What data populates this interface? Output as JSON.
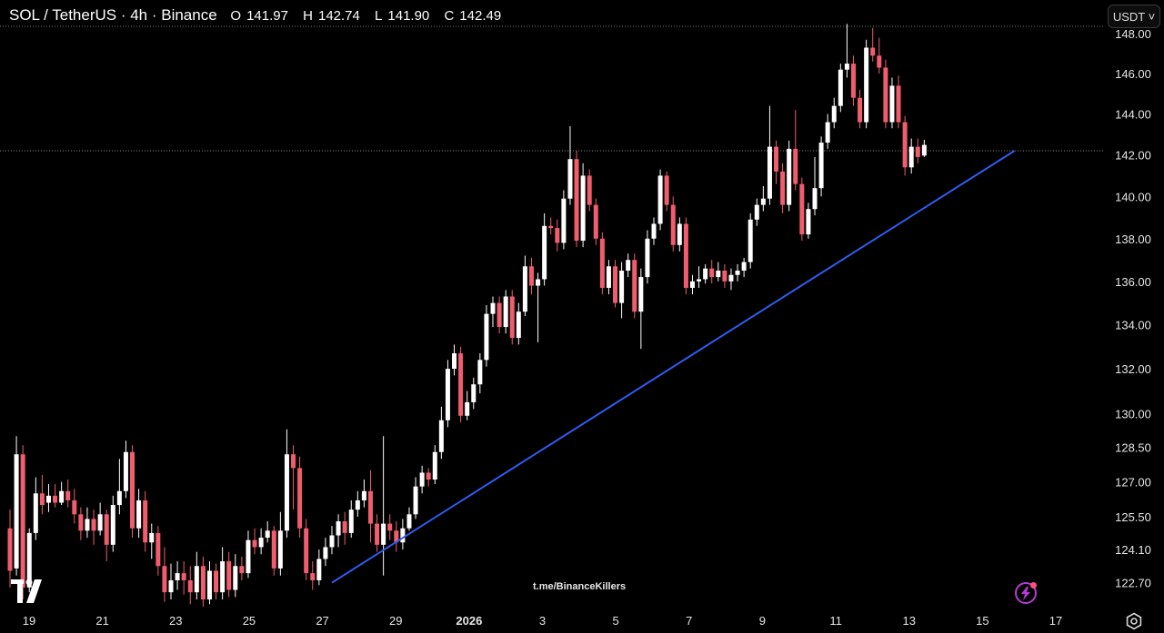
{
  "header": {
    "title": "SOL / TetherUS · 4h · Binance",
    "open_label": "O",
    "open": "141.97",
    "high_label": "H",
    "high": "142.74",
    "low_label": "L",
    "low": "141.90",
    "close_label": "C",
    "close": "142.49"
  },
  "currency_button": "USDT ˅",
  "watermark": "t.me/BinanceKillers",
  "icons": {
    "logo": "tradingview-logo-icon",
    "bolt": "lightning-bolt-icon",
    "settings": "settings-gear-icon"
  },
  "colors": {
    "up": "#ffffff",
    "down": "#f05d6d",
    "trendline": "#2f5cf0",
    "bolt_ring": "#b43cd6"
  },
  "chart_data": {
    "type": "candlestick",
    "title": "SOL / TetherUS · 4h · Binance",
    "y_axis": {
      "ticks": [
        "148.00",
        "146.00",
        "144.00",
        "142.00",
        "140.00",
        "138.00",
        "136.00",
        "134.00",
        "132.00",
        "130.00",
        "128.50",
        "127.00",
        "125.50",
        "124.10",
        "122.70"
      ],
      "ylim": [
        121.7,
        148.7
      ],
      "scale": "log",
      "side": "right"
    },
    "x_axis": {
      "ticks": [
        "19",
        "21",
        "23",
        "25",
        "27",
        "29",
        "2026",
        "3",
        "5",
        "7",
        "9",
        "11",
        "13",
        "15",
        "17"
      ],
      "bold_tick": "2026"
    },
    "candles": [
      [
        125,
        123.2,
        125.8,
        122.5
      ],
      [
        123.3,
        128.2,
        129.0,
        123.0
      ],
      [
        128.2,
        122.5,
        128.6,
        122.0
      ],
      [
        122.5,
        124.8,
        125.0,
        122.3
      ],
      [
        124.8,
        126.5,
        127.2,
        124.5
      ],
      [
        126.5,
        126.0,
        127.3,
        125.6
      ],
      [
        126.1,
        126.4,
        126.9,
        125.7
      ],
      [
        126.4,
        126.1,
        126.9,
        125.9
      ],
      [
        126.1,
        126.6,
        127.0,
        126.0
      ],
      [
        126.6,
        126.2,
        127.1,
        125.9
      ],
      [
        126.2,
        125.6,
        126.7,
        125.2
      ],
      [
        125.6,
        124.9,
        125.9,
        124.5
      ],
      [
        124.9,
        125.4,
        125.9,
        124.6
      ],
      [
        125.4,
        124.9,
        125.8,
        124.3
      ],
      [
        124.9,
        125.6,
        126.1,
        124.7
      ],
      [
        125.6,
        124.3,
        125.8,
        123.6
      ],
      [
        124.3,
        126.0,
        126.4,
        124.0
      ],
      [
        126.0,
        126.6,
        128.0,
        125.6
      ],
      [
        126.6,
        128.3,
        128.8,
        126.3
      ],
      [
        128.3,
        125.0,
        128.6,
        124.6
      ],
      [
        125.0,
        126.2,
        126.7,
        124.6
      ],
      [
        126.2,
        124.4,
        126.6,
        124.0
      ],
      [
        124.4,
        124.8,
        125.2,
        123.7
      ],
      [
        124.8,
        123.4,
        125.1,
        123.0
      ],
      [
        123.4,
        122.3,
        124.2,
        121.9
      ],
      [
        122.3,
        122.8,
        123.5,
        122.0
      ],
      [
        122.8,
        123.1,
        123.6,
        122.4
      ],
      [
        123.1,
        122.8,
        123.6,
        122.2
      ],
      [
        122.8,
        122.3,
        123.4,
        121.8
      ],
      [
        122.3,
        123.4,
        124.0,
        122.0
      ],
      [
        123.4,
        122.0,
        123.8,
        121.7
      ],
      [
        122.0,
        123.2,
        123.6,
        121.8
      ],
      [
        123.2,
        122.3,
        123.5,
        122.0
      ],
      [
        122.3,
        123.6,
        124.2,
        122.0
      ],
      [
        123.6,
        122.4,
        124.0,
        122.1
      ],
      [
        122.4,
        123.4,
        123.9,
        122.1
      ],
      [
        123.4,
        123.1,
        123.8,
        122.8
      ],
      [
        123.1,
        124.5,
        124.9,
        122.9
      ],
      [
        124.5,
        124.2,
        125.0,
        123.9
      ],
      [
        124.2,
        124.6,
        125.0,
        123.9
      ],
      [
        124.6,
        124.9,
        125.3,
        124.4
      ],
      [
        124.9,
        123.3,
        125.1,
        123.0
      ],
      [
        123.3,
        124.9,
        125.7,
        123.0
      ],
      [
        124.9,
        128.2,
        129.3,
        124.6
      ],
      [
        128.2,
        127.6,
        128.6,
        125.8
      ],
      [
        127.6,
        125.0,
        128.1,
        124.6
      ],
      [
        125.0,
        123.1,
        125.4,
        122.8
      ],
      [
        123.1,
        122.8,
        123.6,
        122.4
      ],
      [
        122.8,
        123.7,
        124.1,
        122.6
      ],
      [
        123.7,
        124.2,
        124.6,
        123.4
      ],
      [
        124.2,
        124.7,
        125.1,
        123.9
      ],
      [
        124.7,
        125.3,
        125.6,
        124.2
      ],
      [
        125.3,
        124.8,
        125.7,
        124.3
      ],
      [
        124.8,
        125.8,
        126.2,
        124.6
      ],
      [
        125.8,
        126.2,
        126.6,
        125.5
      ],
      [
        126.2,
        126.6,
        127.1,
        125.9
      ],
      [
        126.6,
        125.2,
        127.5,
        124.4
      ],
      [
        125.2,
        124.3,
        125.6,
        124.0
      ],
      [
        124.3,
        125.2,
        129.0,
        123.0
      ],
      [
        125.2,
        124.9,
        125.6,
        124.5
      ],
      [
        124.9,
        124.4,
        125.3,
        124.0
      ],
      [
        124.4,
        125.0,
        125.4,
        124.1
      ],
      [
        125.0,
        125.6,
        125.9,
        124.9
      ],
      [
        125.6,
        126.8,
        127.2,
        125.4
      ],
      [
        126.8,
        127.4,
        127.7,
        126.5
      ],
      [
        127.4,
        127.1,
        127.6,
        126.8
      ],
      [
        127.1,
        128.3,
        128.6,
        126.9
      ],
      [
        128.3,
        129.7,
        130.3,
        128.0
      ],
      [
        129.7,
        132.0,
        132.4,
        129.4
      ],
      [
        132.0,
        132.7,
        133.1,
        131.7
      ],
      [
        132.7,
        129.9,
        133.0,
        129.6
      ],
      [
        129.9,
        130.5,
        131.0,
        129.7
      ],
      [
        130.5,
        131.3,
        131.6,
        130.2
      ],
      [
        131.3,
        132.4,
        132.7,
        130.9
      ],
      [
        132.4,
        134.5,
        134.9,
        132.1
      ],
      [
        134.5,
        135.0,
        135.3,
        133.9
      ],
      [
        135.0,
        133.9,
        135.3,
        133.6
      ],
      [
        133.9,
        135.3,
        135.6,
        133.6
      ],
      [
        135.3,
        133.4,
        135.6,
        133.1
      ],
      [
        133.4,
        134.6,
        135.0,
        133.1
      ],
      [
        134.6,
        136.7,
        137.2,
        134.4
      ],
      [
        136.7,
        135.8,
        137.1,
        135.4
      ],
      [
        135.8,
        136.1,
        136.4,
        133.2
      ],
      [
        136.1,
        138.6,
        139.2,
        135.8
      ],
      [
        138.6,
        138.5,
        139.0,
        138.2
      ],
      [
        138.5,
        137.8,
        138.9,
        137.4
      ],
      [
        137.8,
        139.9,
        140.3,
        137.5
      ],
      [
        139.9,
        141.8,
        143.4,
        139.6
      ],
      [
        141.8,
        137.9,
        142.2,
        137.6
      ],
      [
        137.9,
        141.0,
        141.6,
        137.6
      ],
      [
        141.0,
        139.6,
        141.3,
        139.3
      ],
      [
        139.6,
        138.0,
        139.9,
        137.7
      ],
      [
        138.0,
        135.7,
        138.3,
        135.4
      ],
      [
        135.7,
        136.7,
        137.0,
        135.4
      ],
      [
        136.7,
        135.0,
        137.0,
        134.8
      ],
      [
        135.0,
        136.5,
        136.9,
        134.3
      ],
      [
        136.5,
        137.0,
        137.3,
        136.2
      ],
      [
        137.0,
        134.6,
        137.3,
        134.3
      ],
      [
        134.6,
        136.2,
        136.6,
        132.9
      ],
      [
        136.2,
        138.0,
        138.4,
        135.9
      ],
      [
        138.0,
        138.7,
        139.0,
        137.7
      ],
      [
        138.7,
        141.0,
        141.3,
        138.4
      ],
      [
        141.0,
        139.6,
        141.2,
        139.3
      ],
      [
        139.6,
        137.7,
        140.0,
        137.4
      ],
      [
        137.7,
        138.7,
        139.0,
        137.4
      ],
      [
        138.7,
        135.7,
        139.0,
        135.4
      ],
      [
        135.7,
        136.0,
        136.3,
        135.4
      ],
      [
        136.0,
        136.1,
        136.7,
        135.7
      ],
      [
        136.1,
        136.6,
        136.8,
        135.9
      ],
      [
        136.6,
        136.2,
        137.0,
        135.9
      ],
      [
        136.2,
        136.5,
        136.9,
        136.0
      ],
      [
        136.5,
        136.0,
        136.8,
        135.7
      ],
      [
        136.0,
        136.3,
        136.6,
        135.6
      ],
      [
        136.3,
        136.5,
        136.8,
        136.0
      ],
      [
        136.5,
        136.9,
        137.1,
        136.2
      ],
      [
        136.9,
        138.9,
        139.2,
        136.6
      ],
      [
        138.9,
        139.6,
        139.9,
        138.6
      ],
      [
        139.6,
        139.9,
        140.5,
        139.3
      ],
      [
        139.9,
        142.4,
        144.4,
        139.6
      ],
      [
        142.4,
        141.2,
        142.7,
        140.6
      ],
      [
        141.2,
        139.6,
        141.6,
        139.2
      ],
      [
        139.6,
        142.3,
        142.7,
        139.3
      ],
      [
        142.3,
        140.6,
        144.2,
        140.3
      ],
      [
        140.6,
        138.2,
        140.9,
        137.9
      ],
      [
        138.2,
        139.4,
        139.7,
        138.0
      ],
      [
        139.4,
        140.4,
        141.9,
        139.1
      ],
      [
        140.4,
        142.6,
        142.9,
        140.0
      ],
      [
        142.6,
        143.6,
        144.0,
        142.3
      ],
      [
        143.6,
        144.4,
        144.8,
        143.3
      ],
      [
        144.4,
        146.2,
        146.5,
        144.1
      ],
      [
        146.2,
        146.5,
        148.5,
        145.8
      ],
      [
        146.5,
        144.8,
        146.9,
        144.4
      ],
      [
        144.8,
        143.6,
        145.2,
        143.3
      ],
      [
        143.6,
        147.3,
        147.7,
        143.3
      ],
      [
        147.3,
        146.9,
        148.3,
        146.6
      ],
      [
        146.9,
        146.3,
        147.8,
        146.0
      ],
      [
        146.3,
        143.6,
        146.7,
        143.3
      ],
      [
        143.6,
        145.4,
        145.8,
        143.3
      ],
      [
        145.4,
        143.6,
        145.9,
        143.3
      ],
      [
        143.6,
        141.4,
        143.9,
        141.0
      ],
      [
        141.4,
        142.4,
        142.8,
        141.1
      ],
      [
        142.4,
        141.9,
        142.8,
        141.6
      ],
      [
        141.97,
        142.49,
        142.74,
        141.9
      ]
    ],
    "trendline": {
      "from": {
        "candle": 50,
        "price": 122.7
      },
      "to": {
        "candle": 156,
        "price": 142.2
      }
    }
  }
}
